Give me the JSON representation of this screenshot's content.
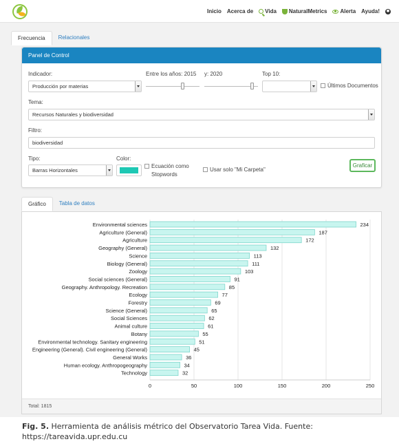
{
  "nav": {
    "items": [
      {
        "label": "Inicio",
        "icon": ""
      },
      {
        "label": "Acerca de",
        "icon": ""
      },
      {
        "label": "Vida",
        "icon": "search-icon"
      },
      {
        "label": "NaturalMetrics",
        "icon": "trophy-icon"
      },
      {
        "label": "Alerta",
        "icon": "eye-icon"
      },
      {
        "label": "Ayuda!",
        "icon": ""
      }
    ]
  },
  "tabs": [
    {
      "label": "Frecuencia",
      "active": true
    },
    {
      "label": "Relacionales",
      "active": false
    }
  ],
  "panel": {
    "title": "Panel de Control",
    "indicador_label": "Indicador:",
    "indicador_value": "Producción por materias",
    "anios_label": "Entre los años: 2015",
    "y_label": "y: 2020",
    "top10_label": "Top 10:",
    "top10_value": "",
    "ultimos_label": "Últimos Documentos",
    "tema_label": "Tema:",
    "tema_value": "Recursos Naturales y biodiversidad",
    "filtro_label": "Filtro:",
    "filtro_value": "biodiversidad",
    "tipo_label": "Tipo:",
    "tipo_value": "Barras Horizontales",
    "color_label": "Color:",
    "color_value": "#1ec8b4",
    "ecuacion_label": "Ecuación como",
    "stopwords_label": "Stopwords",
    "carpeta_label": "Usar solo \"Mi Carpeta\"",
    "graficar_label": "Graficar"
  },
  "result_tabs": [
    {
      "label": "Gráfico",
      "active": true
    },
    {
      "label": "Tabla de datos",
      "active": false
    }
  ],
  "chart_data": {
    "type": "bar",
    "orientation": "horizontal",
    "categories": [
      "Environmental sciences",
      "Agriculture (General)",
      "Agriculture",
      "Geography (General)",
      "Science",
      "Biology (General)",
      "Zoology",
      "Social sciences (General)",
      "Geography. Anthropology. Recreation",
      "Ecology",
      "Forestry",
      "Science (General)",
      "Social Sciences",
      "Animal culture",
      "Botany",
      "Environmental technology. Sanitary engineering",
      "Engineering (General). Civil engineering (General)",
      "General Works",
      "Human ecology. Anthropogeography",
      "Technology"
    ],
    "values": [
      234,
      187,
      172,
      132,
      113,
      111,
      103,
      91,
      85,
      77,
      69,
      65,
      62,
      61,
      55,
      51,
      45,
      36,
      34,
      32
    ],
    "xlim": [
      0,
      250
    ],
    "xticks": [
      0,
      50,
      100,
      150,
      200,
      250
    ],
    "bar_color": "#c8f5ef",
    "bar_border": "#7fd6cc",
    "grid": true
  },
  "total_label": "Total: 1815",
  "caption": {
    "fig": "Fig. 5.",
    "text": "Herramienta de análisis métrico del Observatorio Tarea Vida. Fuente: https://tareavida.upr.edu.cu"
  }
}
